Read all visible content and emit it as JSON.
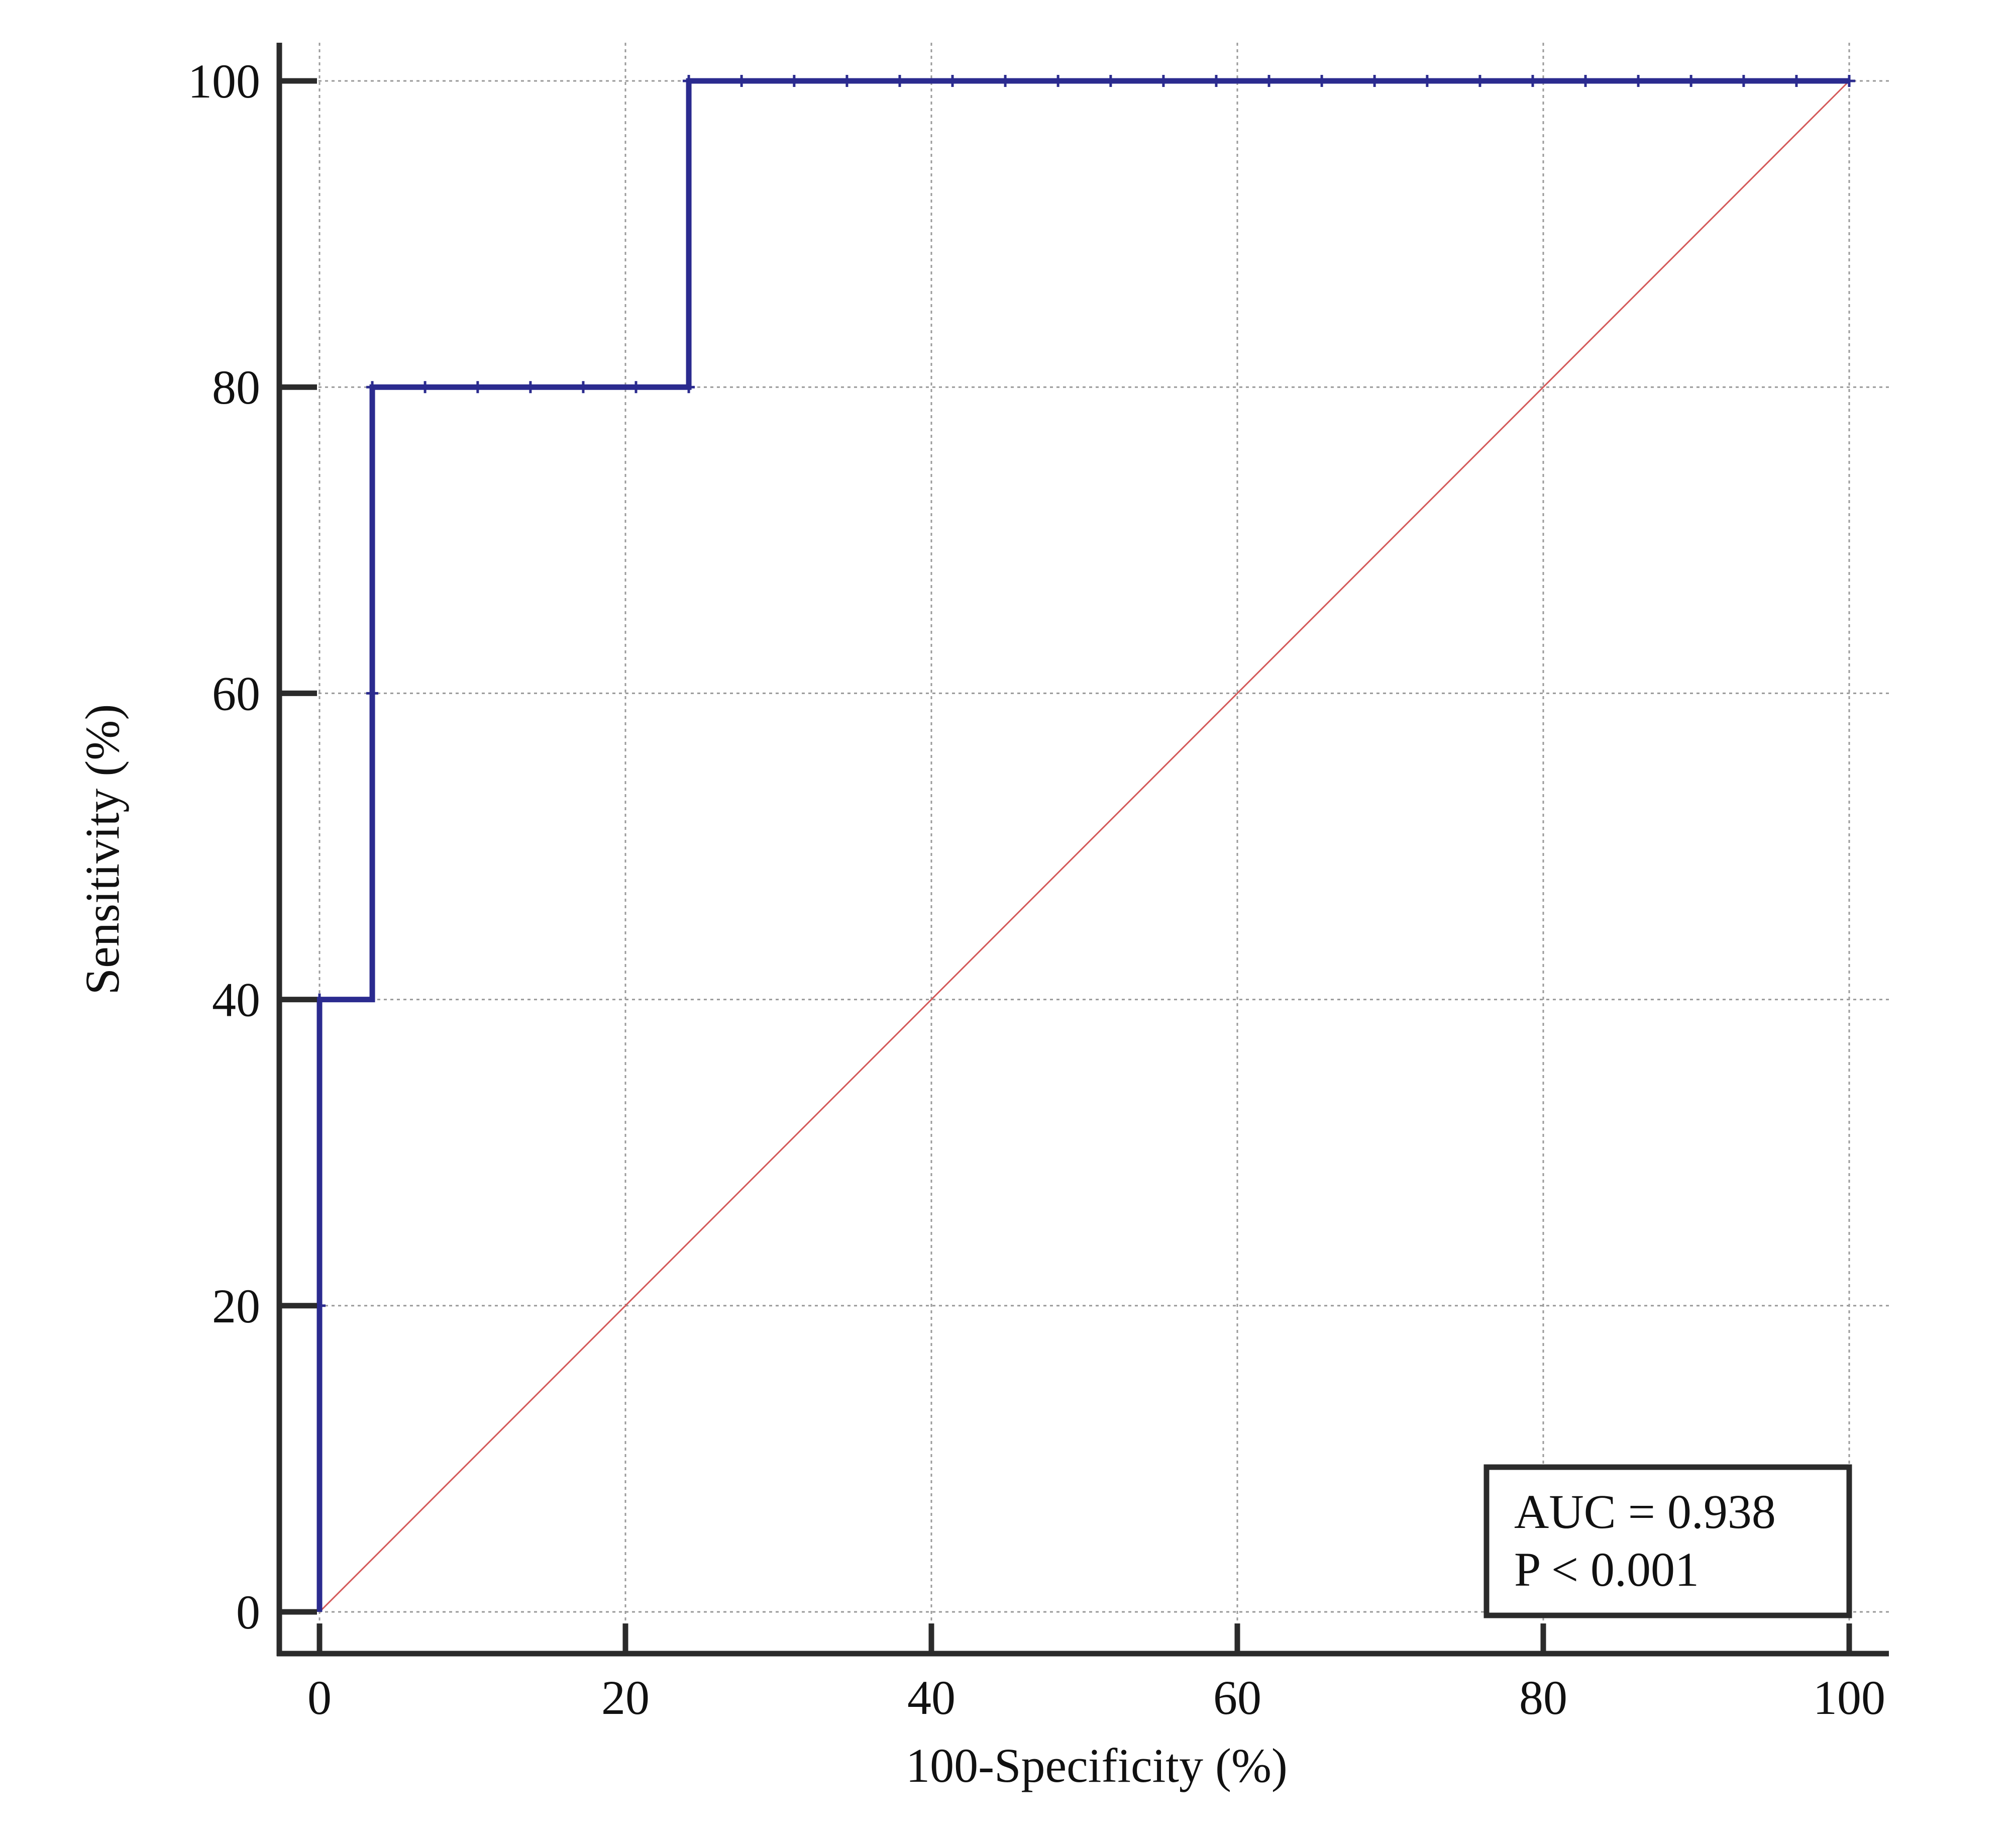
{
  "chart_data": {
    "type": "line",
    "xlabel": "100-Specificity (%)",
    "ylabel": "Sensitivity (%)",
    "xlim": [
      0,
      100
    ],
    "ylim": [
      0,
      100
    ],
    "xticks": [
      0,
      20,
      40,
      60,
      80,
      100
    ],
    "yticks": [
      0,
      20,
      40,
      60,
      80,
      100
    ],
    "grid": true,
    "series": [
      {
        "role": "roc-curve",
        "color": "#2b2b8f",
        "step_points": [
          [
            0,
            0
          ],
          [
            0,
            40
          ],
          [
            3.45,
            40
          ],
          [
            3.45,
            80
          ],
          [
            24.14,
            80
          ],
          [
            24.14,
            100
          ],
          [
            100,
            100
          ]
        ],
        "markers": [
          [
            0,
            20
          ],
          [
            0,
            40
          ],
          [
            3.45,
            60
          ],
          [
            3.45,
            80
          ],
          [
            6.9,
            80
          ],
          [
            10.34,
            80
          ],
          [
            13.79,
            80
          ],
          [
            17.24,
            80
          ],
          [
            20.69,
            80
          ],
          [
            24.14,
            80
          ],
          [
            24.14,
            100
          ],
          [
            27.59,
            100
          ],
          [
            31.03,
            100
          ],
          [
            34.48,
            100
          ],
          [
            37.93,
            100
          ],
          [
            41.38,
            100
          ],
          [
            44.83,
            100
          ],
          [
            48.28,
            100
          ],
          [
            51.72,
            100
          ],
          [
            55.17,
            100
          ],
          [
            58.62,
            100
          ],
          [
            62.07,
            100
          ],
          [
            65.52,
            100
          ],
          [
            68.97,
            100
          ],
          [
            72.41,
            100
          ],
          [
            75.86,
            100
          ],
          [
            79.31,
            100
          ],
          [
            82.76,
            100
          ],
          [
            86.21,
            100
          ],
          [
            89.66,
            100
          ],
          [
            93.1,
            100
          ],
          [
            96.55,
            100
          ],
          [
            100,
            100
          ]
        ]
      },
      {
        "role": "reference-diagonal",
        "color": "#d45a5a",
        "points": [
          [
            0,
            0
          ],
          [
            100,
            100
          ]
        ]
      }
    ],
    "annotation": {
      "auc_text": "AUC = 0.938",
      "p_text": "P < 0.001",
      "placement": "bottom-right"
    }
  }
}
